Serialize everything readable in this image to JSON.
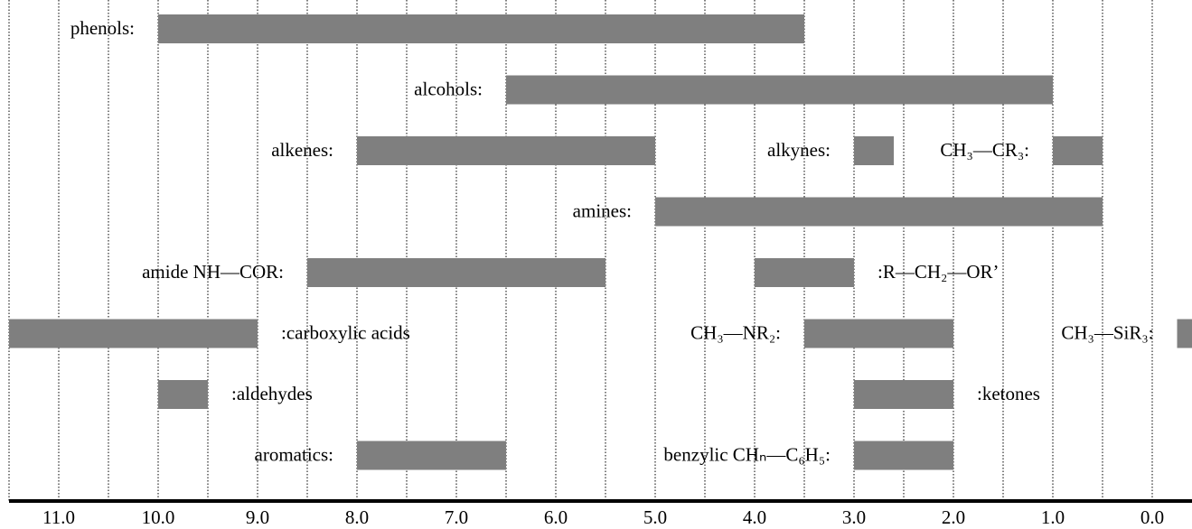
{
  "chart_data": {
    "type": "range-bar",
    "color": "#7f7f7f",
    "xlim": [
      11.5,
      -0.4
    ],
    "xticks": [
      {
        "value": 11,
        "label": "11.0"
      },
      {
        "value": 10,
        "label": "10.0"
      },
      {
        "value": 9,
        "label": "9.0"
      },
      {
        "value": 8,
        "label": "8.0"
      },
      {
        "value": 7,
        "label": "7.0"
      },
      {
        "value": 6,
        "label": "6.0"
      },
      {
        "value": 5,
        "label": "5.0"
      },
      {
        "value": 4,
        "label": "4.0"
      },
      {
        "value": 3,
        "label": "3.0"
      },
      {
        "value": 2,
        "label": "2.0"
      },
      {
        "value": 1,
        "label": "1.0"
      },
      {
        "value": 0,
        "label": "0.0"
      }
    ],
    "grid_lines": [
      11.5,
      11,
      10.5,
      10,
      9.5,
      9,
      8.5,
      8,
      7.5,
      7,
      6.5,
      6,
      5.5,
      5,
      4.5,
      4,
      3.5,
      3,
      2.5,
      2,
      1.5,
      1,
      0.5,
      0
    ],
    "grid": true,
    "rows": [
      [
        {
          "label": "phenols:",
          "range": [
            10.0,
            3.5
          ]
        }
      ],
      [
        {
          "label": "alcohols:",
          "range": [
            6.5,
            1.0
          ]
        }
      ],
      [
        {
          "label": "alkenes:",
          "range": [
            8.0,
            5.0
          ]
        },
        {
          "label": "alkynes:",
          "range": [
            3.0,
            2.6
          ]
        },
        {
          "label": "CH₃—CR₃:",
          "range": [
            1.0,
            0.5
          ]
        }
      ],
      [
        {
          "label": "amines:",
          "range": [
            5.0,
            0.5
          ]
        }
      ],
      [
        {
          "label": "amide NH—COR:",
          "range": [
            8.5,
            5.5
          ]
        },
        {
          "label": ":R—CH₂—OR’",
          "range": [
            4.0,
            3.0
          ]
        }
      ],
      [
        {
          "label": ":carboxylic acids",
          "range": [
            11.5,
            9.0
          ]
        },
        {
          "label": "CH₃—NR₂:",
          "range": [
            3.5,
            2.0
          ]
        },
        {
          "label": "CH₃—SiR₃:",
          "range": [
            -0.25,
            -0.4
          ]
        }
      ],
      [
        {
          "label": ":aldehydes",
          "range": [
            10.0,
            9.5
          ]
        },
        {
          "label": ":ketones",
          "range": [
            3.0,
            2.0
          ]
        }
      ],
      [
        {
          "label": "aromatics:",
          "range": [
            8.0,
            6.5
          ]
        },
        {
          "label": "benzylic CHₙ—C₆H₅:",
          "range": [
            3.0,
            2.0
          ]
        }
      ]
    ]
  }
}
